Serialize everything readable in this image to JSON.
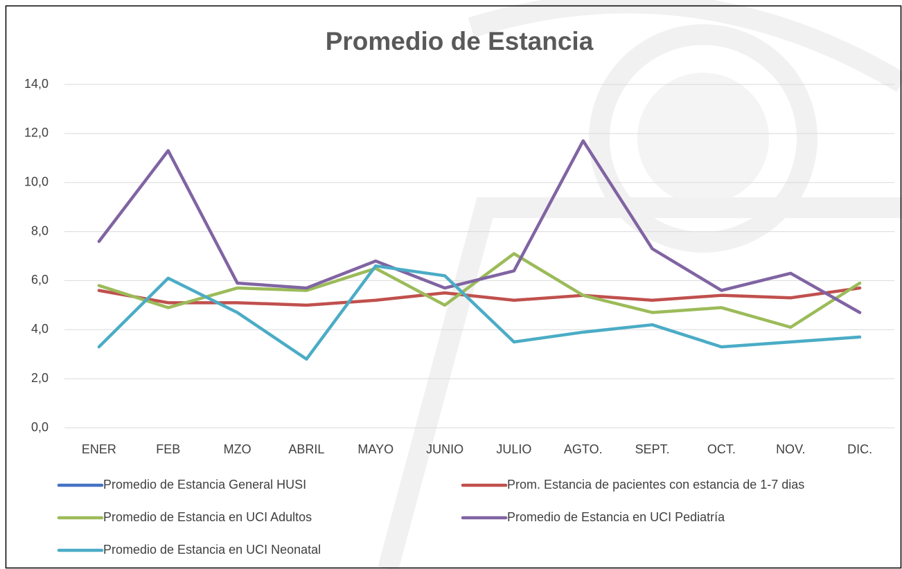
{
  "chart_data": {
    "type": "line",
    "title": "Promedio de Estancia",
    "categories": [
      "ENER",
      "FEB",
      "MZO",
      "ABRIL",
      "MAYO",
      "JUNIO",
      "JULIO",
      "AGTO.",
      "SEPT.",
      "OCT.",
      "NOV.",
      "DIC."
    ],
    "ylim": [
      0,
      14
    ],
    "yticks": [
      {
        "value": 0,
        "label": "0,0"
      },
      {
        "value": 2,
        "label": "2,0"
      },
      {
        "value": 4,
        "label": "4,0"
      },
      {
        "value": 6,
        "label": "6,0"
      },
      {
        "value": 8,
        "label": "8,0"
      },
      {
        "value": 10,
        "label": "10,0"
      },
      {
        "value": 12,
        "label": "12,0"
      },
      {
        "value": 14,
        "label": "14,0"
      }
    ],
    "grid": true,
    "legend": "bottom",
    "series": [
      {
        "name": "Promedio de Estancia General HUSI",
        "color": "#4472c4",
        "values": [
          null,
          null,
          null,
          null,
          null,
          null,
          null,
          null,
          null,
          null,
          null,
          null
        ]
      },
      {
        "name": "Prom. Estancia de pacientes con estancia de 1-7 dias",
        "color": "#c0504d",
        "values": [
          5.6,
          5.1,
          5.1,
          5.0,
          5.2,
          5.5,
          5.2,
          5.4,
          5.2,
          5.4,
          5.3,
          5.7
        ]
      },
      {
        "name": "Promedio de Estancia en UCI Adultos",
        "color": "#9bbb59",
        "values": [
          5.8,
          4.9,
          5.7,
          5.6,
          6.5,
          5.0,
          7.1,
          5.4,
          4.7,
          4.9,
          4.1,
          5.9
        ]
      },
      {
        "name": "Promedio de Estancia en UCI Pediatría",
        "color": "#8064a2",
        "values": [
          7.6,
          11.3,
          5.9,
          5.7,
          6.8,
          5.7,
          6.4,
          11.7,
          7.3,
          5.6,
          6.3,
          4.7
        ]
      },
      {
        "name": "Promedio de Estancia en UCI Neonatal",
        "color": "#4bacc6",
        "values": [
          3.3,
          6.1,
          4.7,
          2.8,
          6.6,
          6.2,
          3.5,
          3.9,
          4.2,
          3.3,
          3.5,
          3.7
        ]
      }
    ]
  }
}
